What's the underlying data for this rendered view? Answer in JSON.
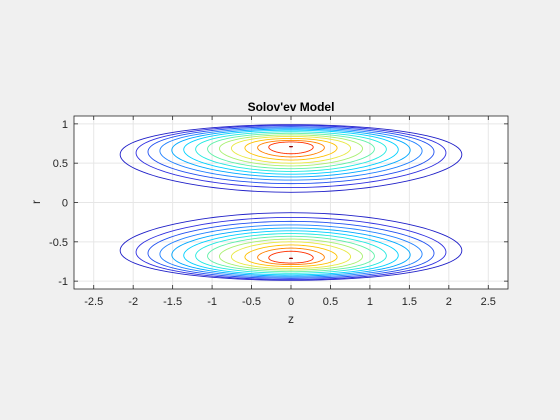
{
  "figure": {
    "background": "#f0f0f0",
    "axes_background": "#ffffff",
    "axis_color": "#262626",
    "grid_color": "#e6e6e6"
  },
  "chart_data": {
    "type": "contour",
    "title": "Solov'ev Model",
    "xlabel": "z",
    "ylabel": "r",
    "xlim": [
      -2.75,
      2.75
    ],
    "ylim": [
      -1.1,
      1.1
    ],
    "xticks": [
      -2.5,
      -2,
      -1.5,
      -1,
      -0.5,
      0,
      0.5,
      1,
      1.5,
      2,
      2.5
    ],
    "xtick_labels": [
      "-2.5",
      "-2",
      "-1.5",
      "-1",
      "-0.5",
      "0",
      "0.5",
      "1",
      "1.5",
      "2",
      "2.5"
    ],
    "yticks": [
      -1,
      -0.5,
      0,
      0.5,
      1
    ],
    "ytick_labels": [
      "-1",
      "-0.5",
      "0",
      "0.5",
      "1"
    ],
    "grid": true,
    "symmetry": "mirrored about r = 0",
    "o_point": {
      "z": 0,
      "r": 0.71
    },
    "colormap": "jet",
    "contours": [
      {
        "z_half_width": 2.15,
        "r_inner": 0.13,
        "r_outer": 0.99,
        "color": "#2020c8"
      },
      {
        "z_half_width": 1.95,
        "r_inner": 0.19,
        "r_outer": 0.98,
        "color": "#3030e0"
      },
      {
        "z_half_width": 1.8,
        "r_inner": 0.24,
        "r_outer": 0.965,
        "color": "#2050f0"
      },
      {
        "z_half_width": 1.65,
        "r_inner": 0.285,
        "r_outer": 0.95,
        "color": "#2080ff"
      },
      {
        "z_half_width": 1.5,
        "r_inner": 0.325,
        "r_outer": 0.935,
        "color": "#00a8ff"
      },
      {
        "z_half_width": 1.35,
        "r_inner": 0.36,
        "r_outer": 0.92,
        "color": "#00d0ff"
      },
      {
        "z_half_width": 1.2,
        "r_inner": 0.395,
        "r_outer": 0.9,
        "color": "#20e8e0"
      },
      {
        "z_half_width": 1.05,
        "r_inner": 0.43,
        "r_outer": 0.88,
        "color": "#60f0a8"
      },
      {
        "z_half_width": 0.9,
        "r_inner": 0.465,
        "r_outer": 0.86,
        "color": "#a8f070"
      },
      {
        "z_half_width": 0.75,
        "r_inner": 0.5,
        "r_outer": 0.84,
        "color": "#e8e840"
      },
      {
        "z_half_width": 0.58,
        "r_inner": 0.54,
        "r_outer": 0.815,
        "color": "#ffc000"
      },
      {
        "z_half_width": 0.42,
        "r_inner": 0.58,
        "r_outer": 0.79,
        "color": "#ff8000"
      },
      {
        "z_half_width": 0.28,
        "r_inner": 0.62,
        "r_outer": 0.77,
        "color": "#ff3000"
      },
      {
        "z_half_width": 0.01,
        "r_inner": 0.707,
        "r_outer": 0.713,
        "color": "#d00000"
      }
    ]
  }
}
